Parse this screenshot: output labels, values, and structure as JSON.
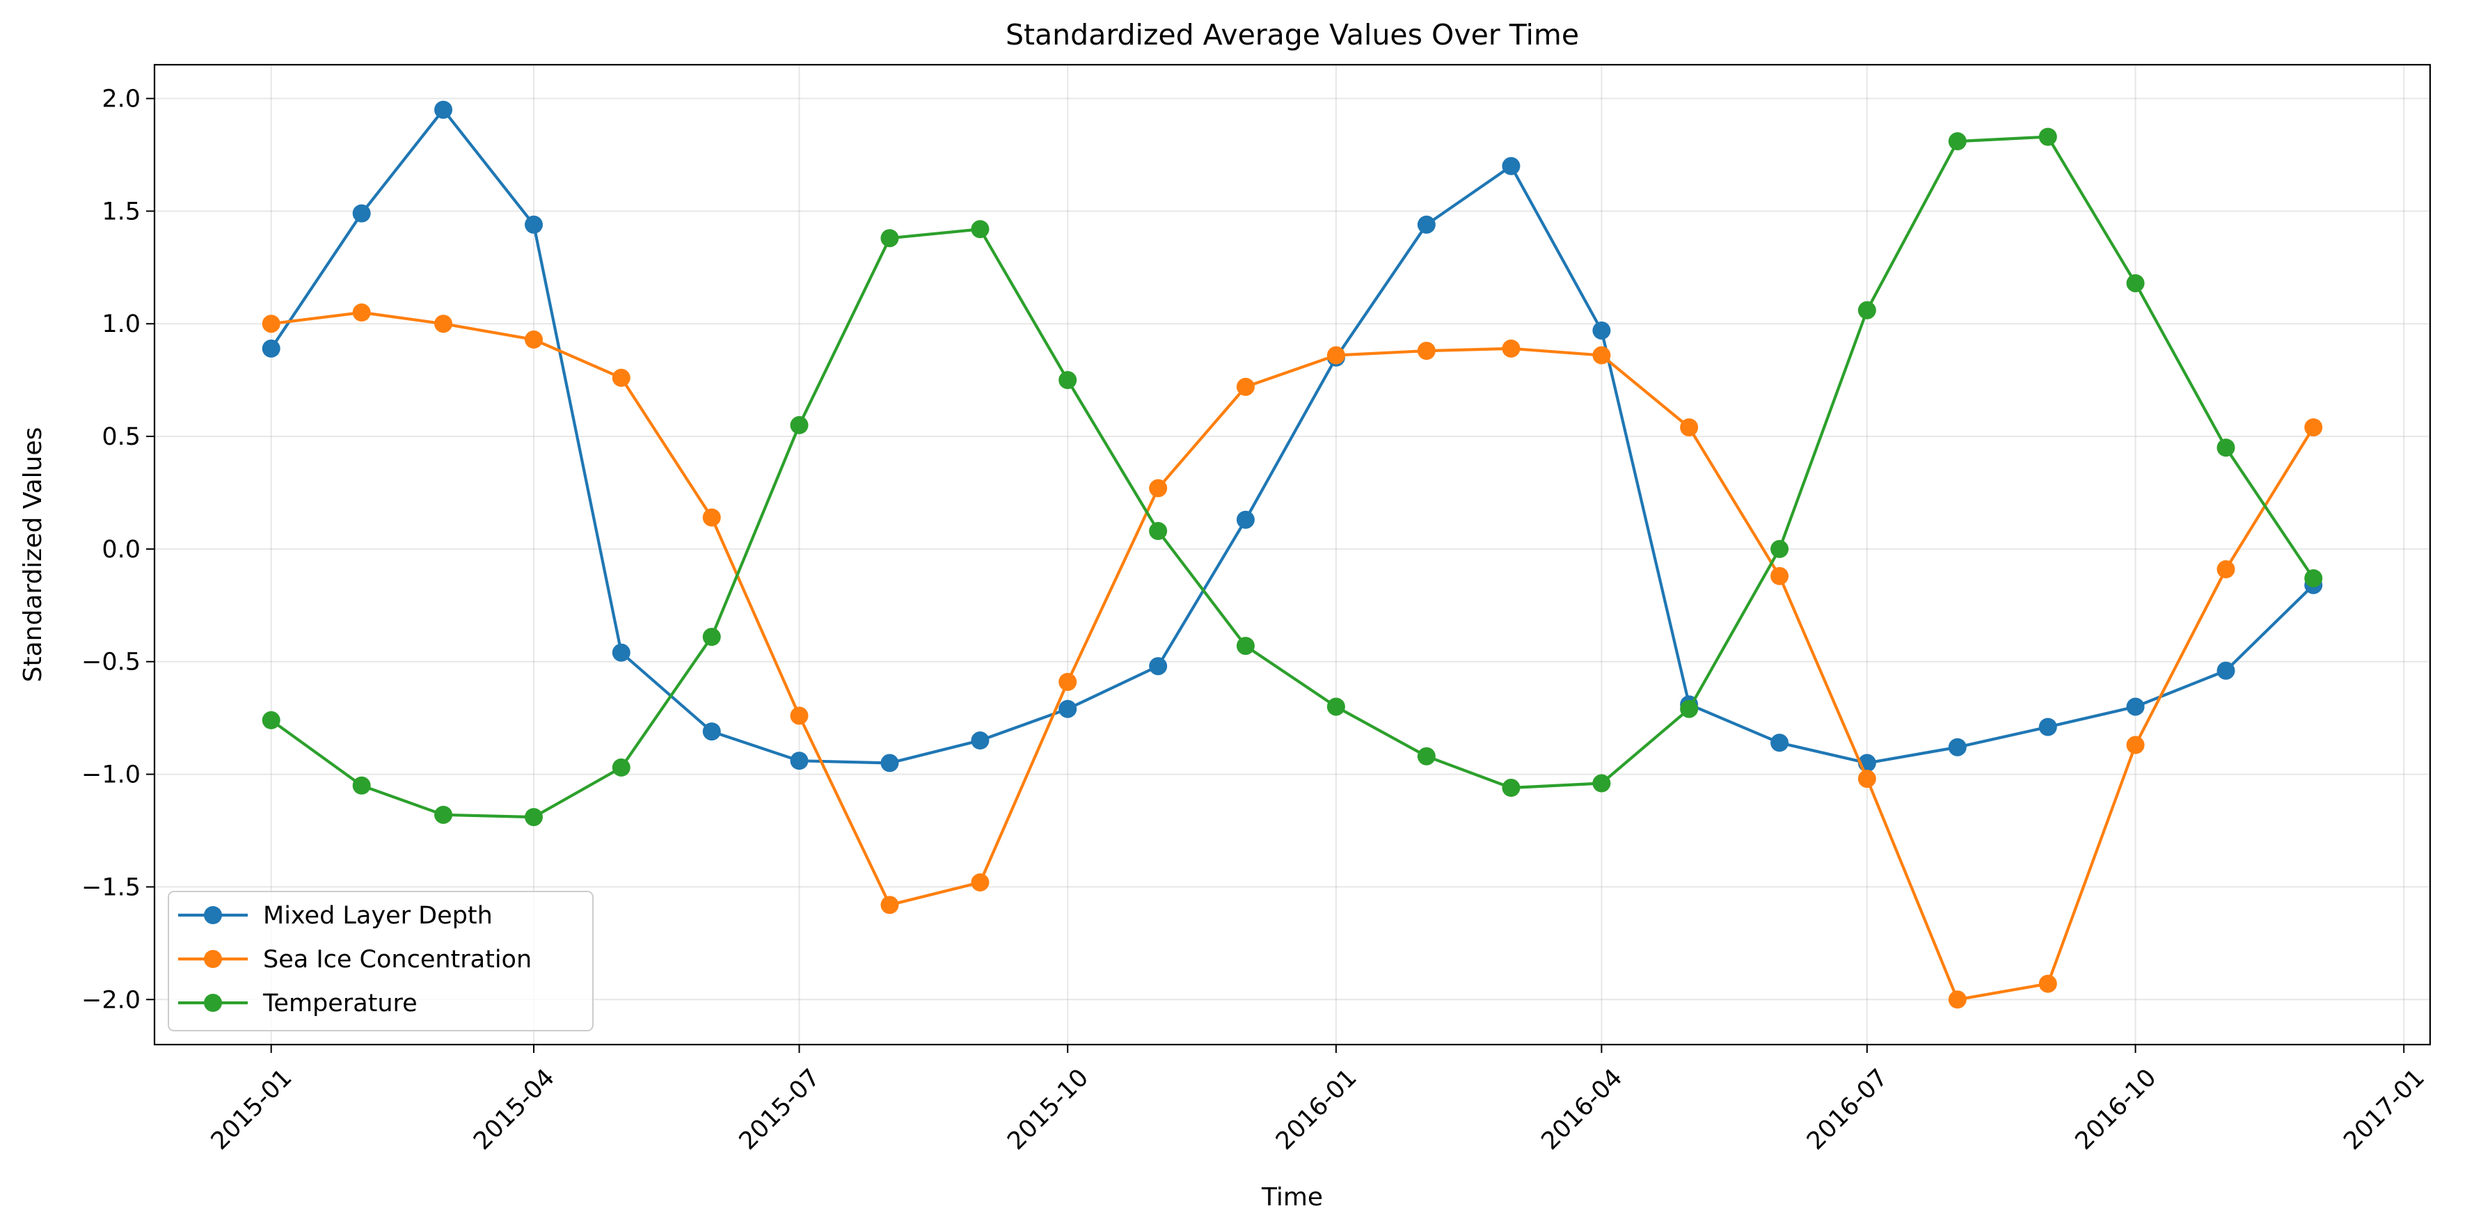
{
  "chart_data": {
    "type": "line",
    "title": "Standardized Average Values Over Time",
    "xlabel": "Time",
    "ylabel": "Standardized Values",
    "x": [
      "2015-01-01",
      "2015-02-01",
      "2015-03-01",
      "2015-04-01",
      "2015-05-01",
      "2015-06-01",
      "2015-07-01",
      "2015-08-01",
      "2015-09-01",
      "2015-10-01",
      "2015-11-01",
      "2015-12-01",
      "2016-01-01",
      "2016-02-01",
      "2016-03-01",
      "2016-04-01",
      "2016-05-01",
      "2016-06-01",
      "2016-07-01",
      "2016-08-01",
      "2016-09-01",
      "2016-10-01",
      "2016-11-01",
      "2016-12-01"
    ],
    "xlim": [
      "2014-11-22",
      "2017-01-10"
    ],
    "ylim": [
      -2.2,
      2.15
    ],
    "x_ticks": [
      {
        "date": "2015-01-01",
        "label": "2015-01"
      },
      {
        "date": "2015-04-01",
        "label": "2015-04"
      },
      {
        "date": "2015-07-01",
        "label": "2015-07"
      },
      {
        "date": "2015-10-01",
        "label": "2015-10"
      },
      {
        "date": "2016-01-01",
        "label": "2016-01"
      },
      {
        "date": "2016-04-01",
        "label": "2016-04"
      },
      {
        "date": "2016-07-01",
        "label": "2016-07"
      },
      {
        "date": "2016-10-01",
        "label": "2016-10"
      },
      {
        "date": "2017-01-01",
        "label": "2017-01"
      }
    ],
    "y_ticks": [
      {
        "value": 2.0,
        "label": "2.0"
      },
      {
        "value": 1.5,
        "label": "1.5"
      },
      {
        "value": 1.0,
        "label": "1.0"
      },
      {
        "value": 0.5,
        "label": "0.5"
      },
      {
        "value": 0.0,
        "label": "0.0"
      },
      {
        "value": -0.5,
        "label": "−0.5"
      },
      {
        "value": -1.0,
        "label": "−1.0"
      },
      {
        "value": -1.5,
        "label": "−1.5"
      },
      {
        "value": -2.0,
        "label": "−2.0"
      }
    ],
    "grid": true,
    "legend_position": "bottom-left",
    "series": [
      {
        "name": "Mixed Layer Depth",
        "color": "#1f77b4",
        "values": [
          0.89,
          1.49,
          1.95,
          1.44,
          -0.46,
          -0.81,
          -0.94,
          -0.95,
          -0.85,
          -0.71,
          -0.52,
          0.13,
          0.85,
          1.44,
          1.7,
          0.97,
          -0.69,
          -0.86,
          -0.95,
          -0.88,
          -0.79,
          -0.7,
          -0.54,
          -0.16
        ]
      },
      {
        "name": "Sea Ice Concentration",
        "color": "#ff7f0e",
        "values": [
          1.0,
          1.05,
          1.0,
          0.93,
          0.76,
          0.14,
          -0.74,
          -1.58,
          -1.48,
          -0.59,
          0.27,
          0.72,
          0.86,
          0.88,
          0.89,
          0.86,
          0.54,
          -0.12,
          -1.02,
          -2.0,
          -1.93,
          -0.87,
          -0.09,
          0.54
        ]
      },
      {
        "name": "Temperature",
        "color": "#2ca02c",
        "values": [
          -0.76,
          -1.05,
          -1.18,
          -1.19,
          -0.97,
          -0.39,
          0.55,
          1.38,
          1.42,
          0.75,
          0.08,
          -0.43,
          -0.7,
          -0.92,
          -1.06,
          -1.04,
          -0.71,
          0.0,
          1.06,
          1.81,
          1.83,
          1.18,
          0.45,
          -0.13
        ]
      }
    ]
  }
}
